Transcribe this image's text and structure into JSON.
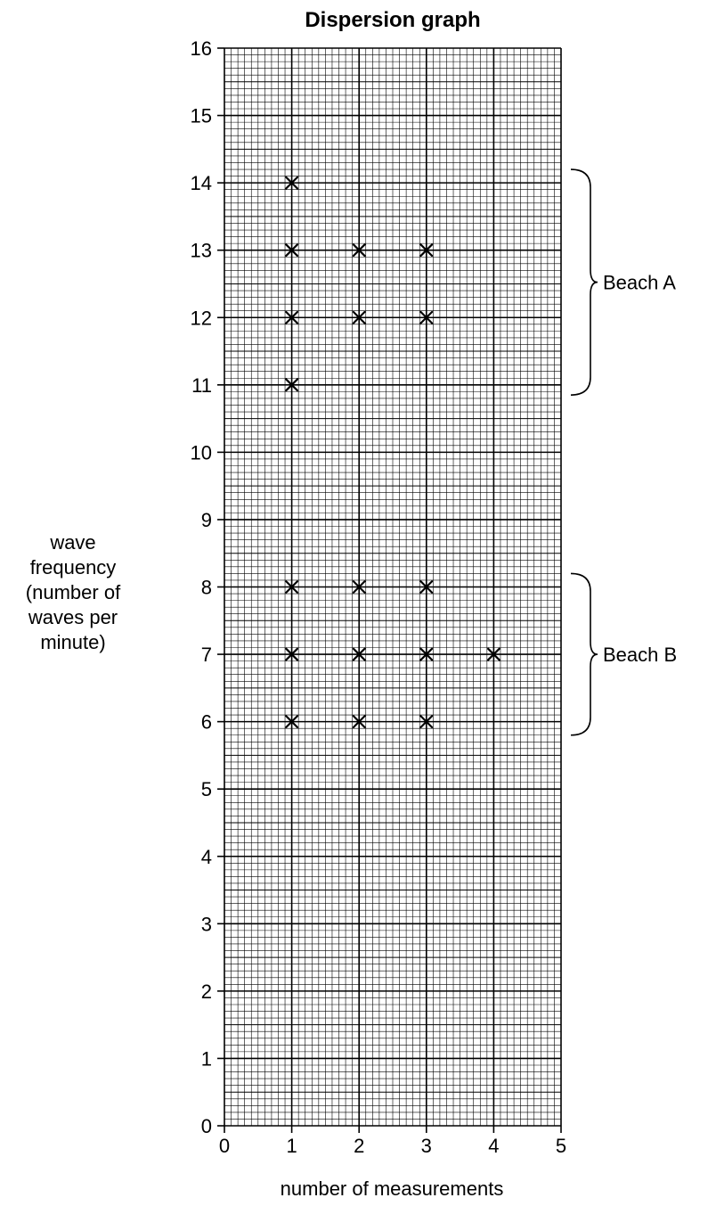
{
  "chart_data": {
    "type": "scatter",
    "title": "Dispersion graph",
    "xlabel": "number of measurements",
    "ylabel": [
      "wave",
      "frequency",
      "(number of",
      "waves per",
      "minute)"
    ],
    "xlim": [
      0,
      5
    ],
    "ylim": [
      0,
      16
    ],
    "x_ticks": [
      "0",
      "1",
      "2",
      "3",
      "4",
      "5"
    ],
    "y_ticks": [
      "0",
      "1",
      "2",
      "3",
      "4",
      "5",
      "6",
      "7",
      "8",
      "9",
      "10",
      "11",
      "12",
      "13",
      "14",
      "15",
      "16"
    ],
    "grid": true,
    "marker": "x",
    "points": [
      {
        "x": 1,
        "y": 14
      },
      {
        "x": 1,
        "y": 13
      },
      {
        "x": 2,
        "y": 13
      },
      {
        "x": 3,
        "y": 13
      },
      {
        "x": 1,
        "y": 12
      },
      {
        "x": 2,
        "y": 12
      },
      {
        "x": 3,
        "y": 12
      },
      {
        "x": 1,
        "y": 11
      },
      {
        "x": 1,
        "y": 8
      },
      {
        "x": 2,
        "y": 8
      },
      {
        "x": 3,
        "y": 8
      },
      {
        "x": 1,
        "y": 7
      },
      {
        "x": 2,
        "y": 7
      },
      {
        "x": 3,
        "y": 7
      },
      {
        "x": 4,
        "y": 7
      },
      {
        "x": 1,
        "y": 6
      },
      {
        "x": 2,
        "y": 6
      },
      {
        "x": 3,
        "y": 6
      }
    ],
    "annotations": [
      {
        "label": "Beach A",
        "y_range": [
          10.85,
          14.2
        ]
      },
      {
        "label": "Beach B",
        "y_range": [
          5.8,
          8.2
        ]
      }
    ]
  }
}
